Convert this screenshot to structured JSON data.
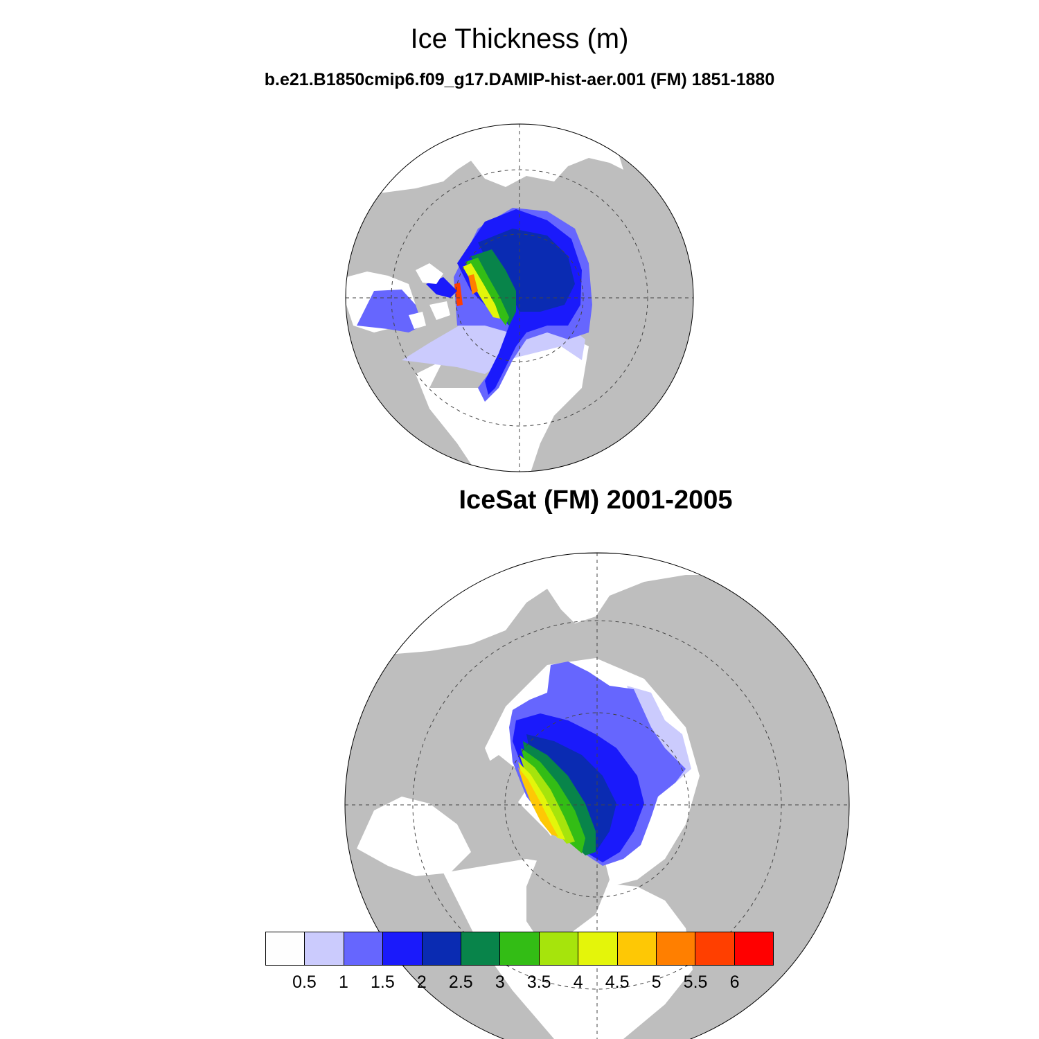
{
  "title": "Ice Thickness (m)",
  "subtitle": "b.e21.B1850cmip6.f09_g17.DAMIP-hist-aer.001 (FM) 1851-1880",
  "panel2_title": "IceSat (FM) 2001-2005",
  "colors": {
    "land": "#bebebe",
    "ocean": "#ffffff",
    "grid": "#444444"
  },
  "colorbar": {
    "colors": [
      "#fefefe",
      "#cbcbfd",
      "#6666fe",
      "#1a1afb",
      "#0a2bb2",
      "#08844a",
      "#33bd15",
      "#a6e40c",
      "#e4f50a",
      "#fec805",
      "#ff7f00",
      "#ff3f00",
      "#ff0000"
    ],
    "labels": [
      "0.5",
      "1",
      "1.5",
      "2",
      "2.5",
      "3",
      "3.5",
      "4",
      "4.5",
      "5",
      "5.5",
      "6"
    ]
  }
}
